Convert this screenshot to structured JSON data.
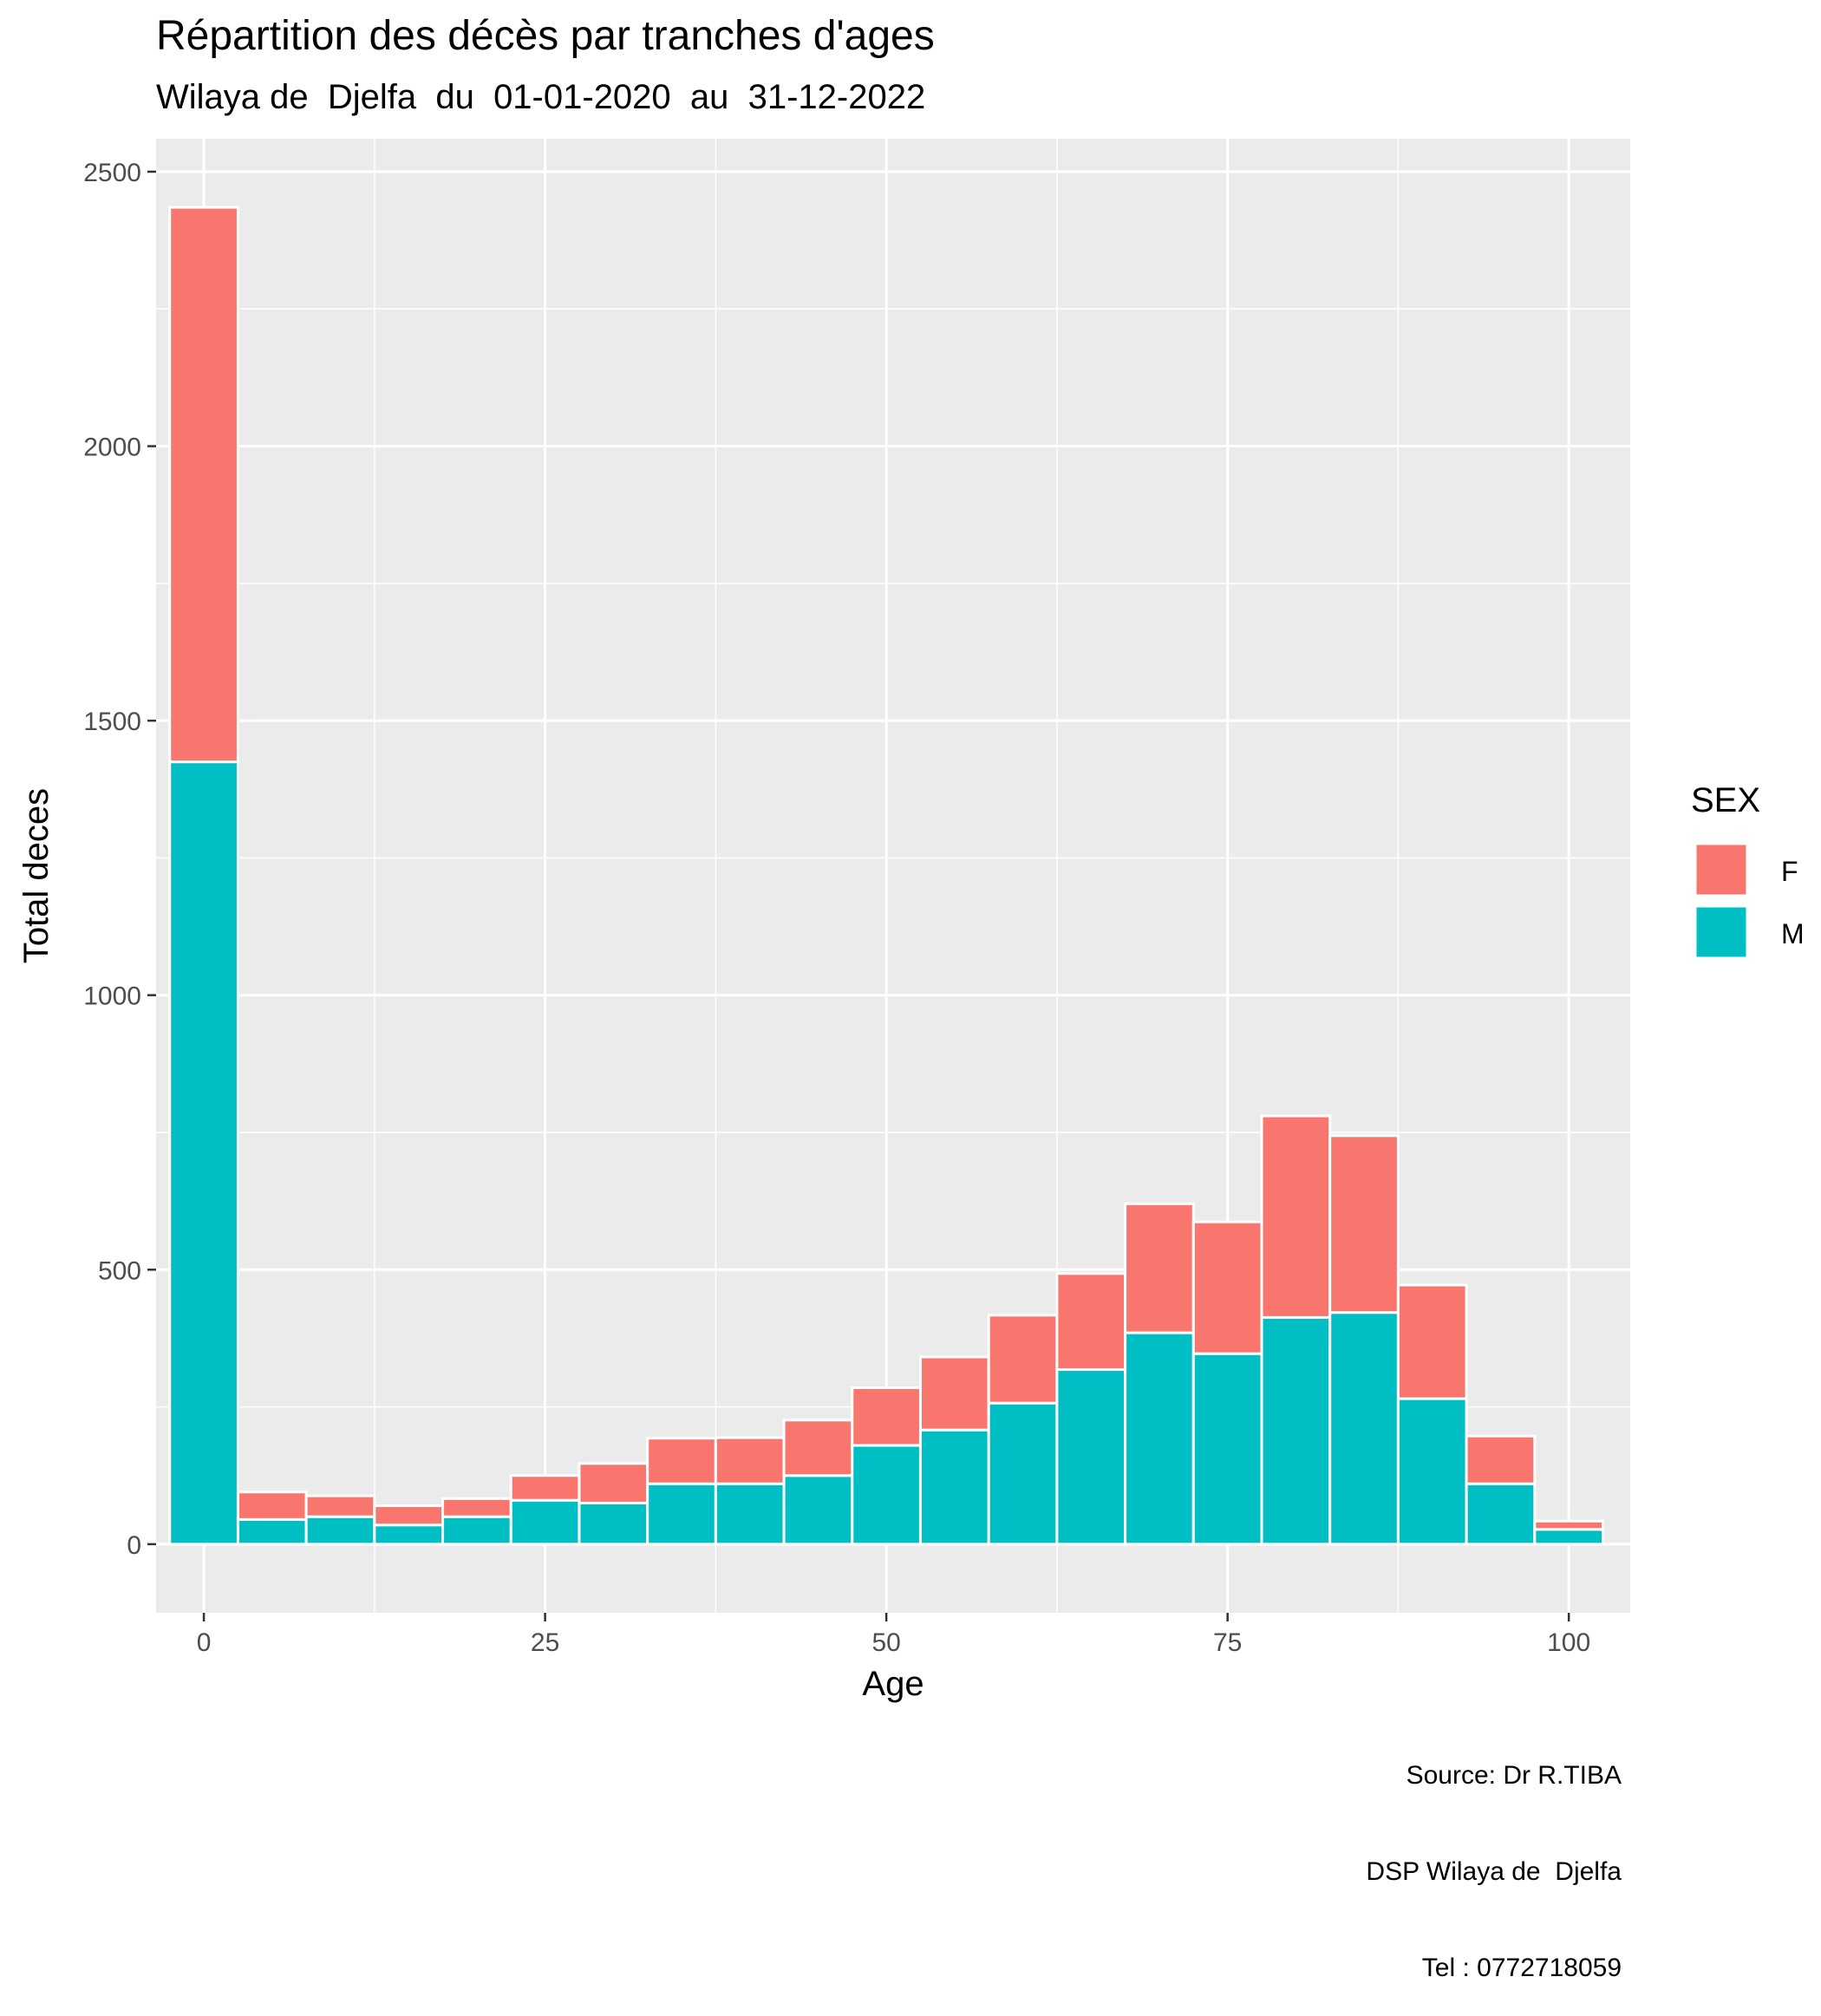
{
  "chart_data": {
    "type": "bar",
    "stacked": true,
    "title": "Répartition des décès par tranches d'ages",
    "subtitle": "Wilaya de  Djelfa  du  01-01-2020  au  31-12-2022",
    "xlabel": "Age",
    "ylabel": "Total deces",
    "xlim": [
      -3.5,
      104.5
    ],
    "ylim": [
      -125,
      2560
    ],
    "xticks": [
      0,
      25,
      50,
      75,
      100
    ],
    "yticks": [
      0,
      500,
      1000,
      1500,
      2000,
      2500
    ],
    "tick_labels_x": [
      "0",
      "25",
      "50",
      "75",
      "100"
    ],
    "tick_labels_y": [
      "0",
      "500",
      "1000",
      "1500",
      "2000",
      "2500"
    ],
    "bin_width": 5,
    "bin_centers": [
      0,
      5,
      10,
      15,
      20,
      25,
      30,
      35,
      40,
      45,
      50,
      55,
      60,
      65,
      70,
      75,
      80,
      85,
      90,
      95,
      100
    ],
    "series": [
      {
        "name": "M",
        "color": "#00BFC4",
        "values": [
          1425,
          45,
          50,
          35,
          50,
          80,
          75,
          110,
          110,
          125,
          180,
          208,
          257,
          318,
          385,
          347,
          413,
          422,
          265,
          110,
          27
        ]
      },
      {
        "name": "F",
        "color": "#F8766D",
        "values": [
          1010,
          50,
          38,
          35,
          33,
          45,
          72,
          83,
          84,
          101,
          105,
          133,
          160,
          175,
          235,
          240,
          367,
          322,
          207,
          87,
          15
        ]
      }
    ],
    "legend": {
      "title": "SEX",
      "entries": [
        "F",
        "M"
      ],
      "position": "right"
    },
    "grid": true,
    "caption": [
      "Source: Dr R.TIBA",
      "DSP Wilaya de  Djelfa",
      "Tel : 0772718059"
    ]
  }
}
